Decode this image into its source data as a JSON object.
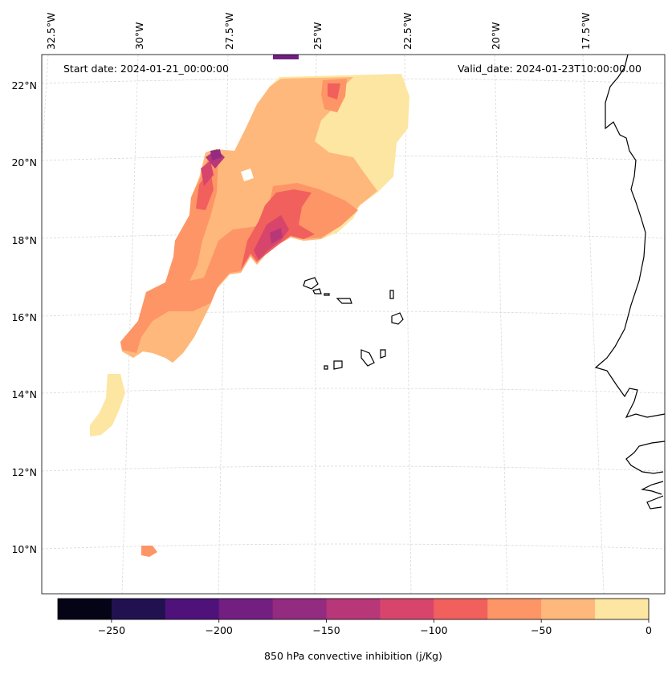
{
  "map": {
    "start_date_text": "Start date: 2024-01-21_00:00:00",
    "valid_date_text": "Valid_date: 2024-01-23T10:00:00.00",
    "lon_labels": [
      "32.5°W",
      "30°W",
      "27.5°W",
      "25°W",
      "22.5°W",
      "20°W",
      "17.5°W"
    ],
    "lat_labels": [
      "22°N",
      "20°N",
      "18°N",
      "16°N",
      "14°N",
      "12°N",
      "10°N"
    ],
    "gridlines": "dashed-gray",
    "variable": "850 hPa convective inhibition (j/Kg)",
    "colors": {
      "land_outline": "#000000",
      "gridline": "#d9d9d9"
    }
  },
  "colorbar": {
    "label": "850 hPa convective inhibition (j/Kg)",
    "boundaries": [
      -275,
      -250,
      -225,
      -200,
      -175,
      -150,
      -125,
      -100,
      -75,
      -50,
      -25,
      0
    ],
    "colors": [
      "#050416",
      "#221150",
      "#4f127b",
      "#721f81",
      "#932b80",
      "#b73779",
      "#d8456c",
      "#f1605d",
      "#fd9567",
      "#feb87c",
      "#fde6a2"
    ],
    "tick_values": [
      -250,
      -200,
      -150,
      -100,
      -50,
      0
    ],
    "tick_labels": [
      "−250",
      "−200",
      "−150",
      "−100",
      "−50",
      "0"
    ]
  }
}
